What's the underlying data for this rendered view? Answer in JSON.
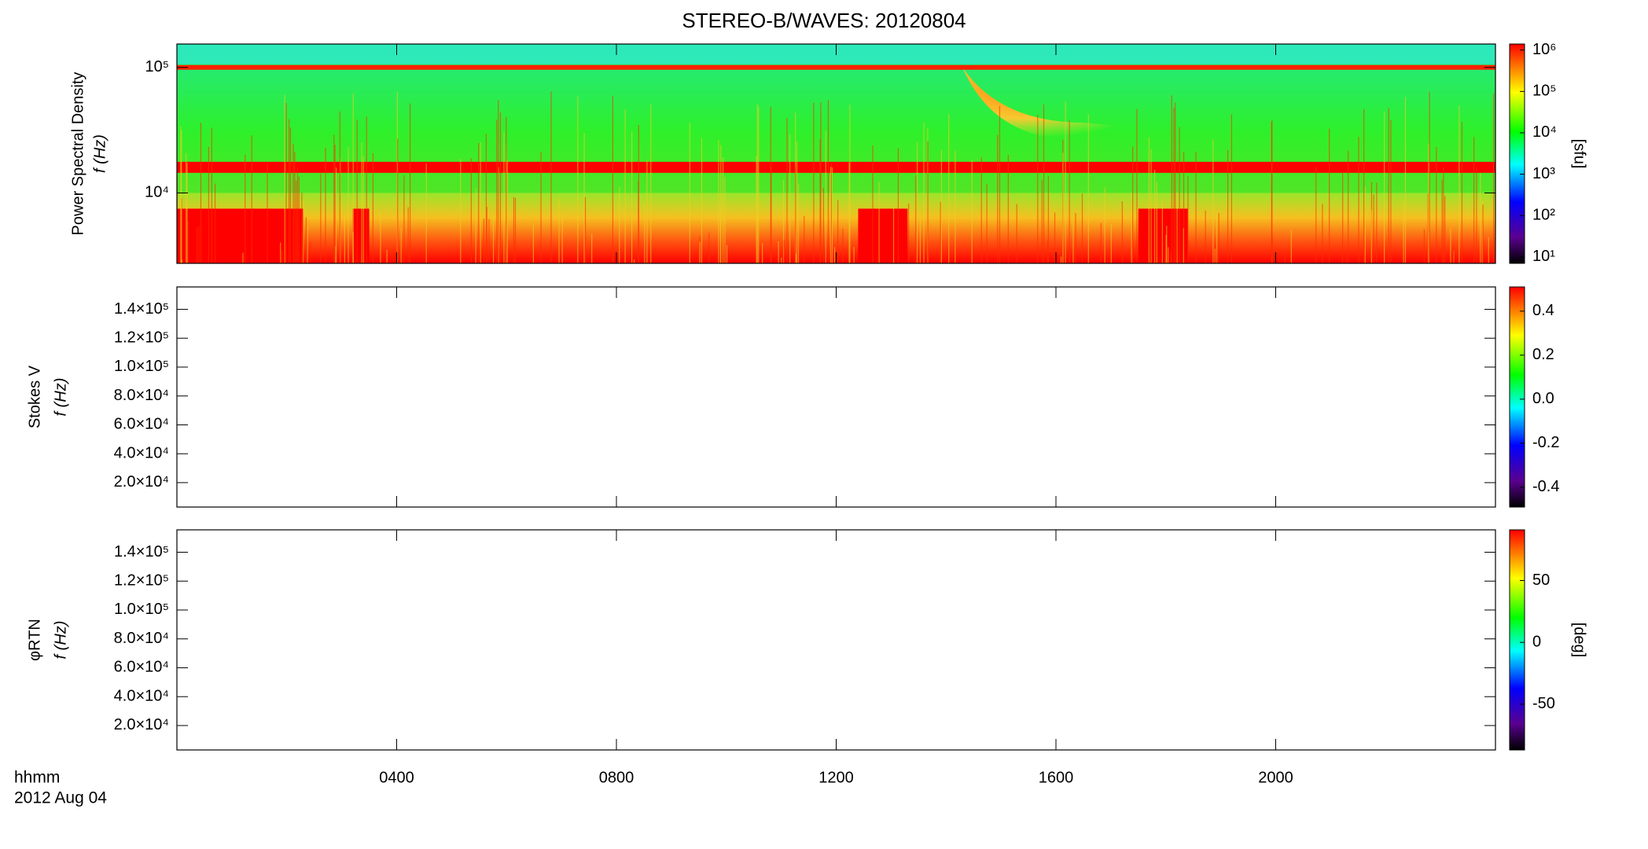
{
  "chart_data": [
    {
      "type": "spectrogram",
      "title": "STEREO-B/WAVES: 20120804",
      "ylabel": [
        "Power Spectral Density",
        "f (Hz)"
      ],
      "ylog": true,
      "ylim": [
        2750,
        153500
      ],
      "yticks": [
        {
          "value": 10000,
          "label": "10⁴"
        },
        {
          "value": 100000,
          "label": "10⁵"
        }
      ],
      "colorbar": {
        "log": true,
        "lim": [
          7,
          1400000
        ],
        "label": "[sfu]",
        "ticks": [
          {
            "value": 10,
            "label": "10¹"
          },
          {
            "value": 100,
            "label": "10²"
          },
          {
            "value": 1000,
            "label": "10³"
          },
          {
            "value": 10000,
            "label": "10⁴"
          },
          {
            "value": 100000,
            "label": "10⁵"
          },
          {
            "value": 1000000,
            "label": "10⁶"
          }
        ]
      }
    },
    {
      "type": "spectrogram",
      "ylabel": [
        "Stokes V",
        "f (Hz)"
      ],
      "ylog": false,
      "ylim": [
        3100,
        155500
      ],
      "yticks": [
        {
          "value": 20000,
          "label": "2.0×10⁴"
        },
        {
          "value": 40000,
          "label": "4.0×10⁴"
        },
        {
          "value": 60000,
          "label": "6.0×10⁴"
        },
        {
          "value": 80000,
          "label": "8.0×10⁴"
        },
        {
          "value": 100000,
          "label": "1.0×10⁵"
        },
        {
          "value": 120000,
          "label": "1.2×10⁵"
        },
        {
          "value": 140000,
          "label": "1.4×10⁵"
        }
      ],
      "colorbar": {
        "log": false,
        "lim": [
          -0.49,
          0.51
        ],
        "ticks": [
          {
            "value": -0.4,
            "label": "-0.4"
          },
          {
            "value": -0.2,
            "label": "-0.2"
          },
          {
            "value": 0,
            "label": "0.0"
          },
          {
            "value": 0.2,
            "label": "0.2"
          },
          {
            "value": 0.4,
            "label": "0.4"
          }
        ]
      }
    },
    {
      "type": "spectrogram",
      "ylabel": [
        "φRTN",
        "f (Hz)"
      ],
      "ylog": false,
      "ylim": [
        3100,
        155500
      ],
      "yticks": [
        {
          "value": 20000,
          "label": "2.0×10⁴"
        },
        {
          "value": 40000,
          "label": "4.0×10⁴"
        },
        {
          "value": 60000,
          "label": "6.0×10⁴"
        },
        {
          "value": 80000,
          "label": "8.0×10⁴"
        },
        {
          "value": 100000,
          "label": "1.0×10⁵"
        },
        {
          "value": 120000,
          "label": "1.2×10⁵"
        },
        {
          "value": 140000,
          "label": "1.4×10⁵"
        }
      ],
      "colorbar": {
        "log": false,
        "lim": [
          -87,
          91
        ],
        "label": "[deg]",
        "ticks": [
          -50,
          0,
          50
        ]
      },
      "xlim": [
        0,
        24
      ],
      "xlabel": "hhmm",
      "date": "2012 Aug 04",
      "xticks": [
        {
          "value": 4,
          "label": "0400"
        },
        {
          "value": 8,
          "label": "0800"
        },
        {
          "value": 12,
          "label": "1200"
        },
        {
          "value": 16,
          "label": "1600"
        },
        {
          "value": 20,
          "label": "2000"
        }
      ]
    }
  ]
}
